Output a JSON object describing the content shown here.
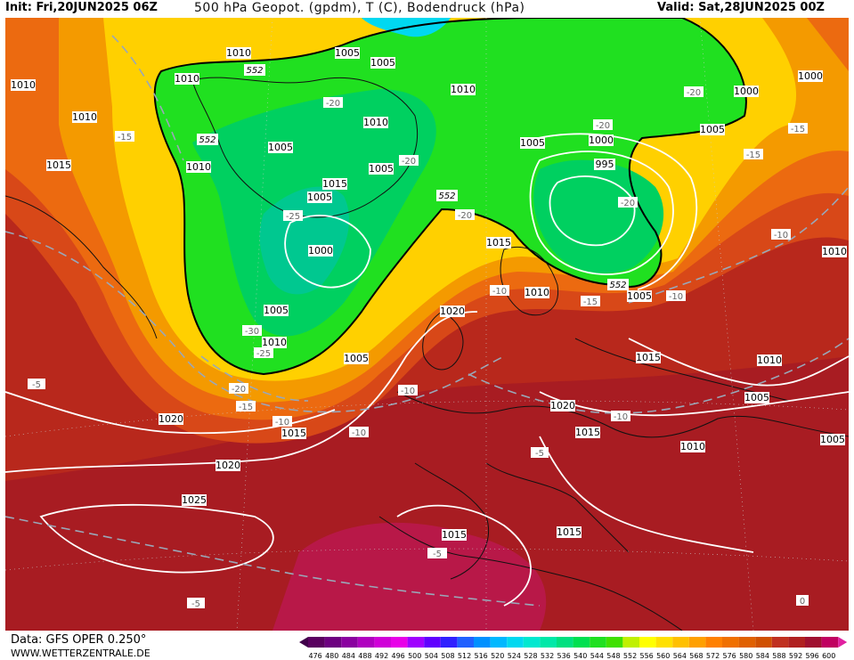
{
  "header": {
    "init": "Init: Fri,20JUN2025 06Z",
    "title": "500 hPa Geopot. (gpdm), T (C), Bodendruck (hPa)",
    "valid": "Valid: Sat,28JUN2025 00Z"
  },
  "footer": {
    "data_source": "Data: GFS OPER 0.250°",
    "website": "WWW.WETTERZENTRALE.DE"
  },
  "legend": {
    "values": [
      "476",
      "480",
      "484",
      "488",
      "492",
      "496",
      "500",
      "504",
      "508",
      "512",
      "516",
      "520",
      "524",
      "528",
      "532",
      "536",
      "540",
      "544",
      "548",
      "552",
      "556",
      "560",
      "564",
      "568",
      "572",
      "576",
      "580",
      "584",
      "588",
      "592",
      "596",
      "600"
    ],
    "colors": [
      "#5a0060",
      "#6d0080",
      "#8a00a0",
      "#b000c0",
      "#d000d8",
      "#e800e8",
      "#a000ff",
      "#6000ff",
      "#3020ff",
      "#2060ff",
      "#0090ff",
      "#00b8ff",
      "#00d8f0",
      "#00e8d0",
      "#00e8a8",
      "#00e080",
      "#00e050",
      "#20e020",
      "#40e000",
      "#c0f000",
      "#ffff00",
      "#ffe000",
      "#ffc000",
      "#ffa000",
      "#ff8000",
      "#f07000",
      "#e06000",
      "#d05000",
      "#c03020",
      "#b02020",
      "#a01030",
      "#c00060"
    ]
  },
  "isobar_labels": [
    "1010",
    "1005",
    "1005",
    "1010",
    "1000",
    "552",
    "1010",
    "1010",
    "1010",
    "1000",
    "1015",
    "1005",
    "552",
    "1010",
    "1005",
    "1005",
    "1015",
    "1005",
    "1000",
    "552",
    "995",
    "1005",
    "1015",
    "1010",
    "1005",
    "1000",
    "552",
    "1005",
    "1020",
    "1005",
    "1010",
    "1015",
    "1015",
    "1020",
    "1010",
    "1020",
    "1015",
    "1020",
    "1025",
    "1010",
    "1005",
    "1015",
    "1010",
    "1005",
    "1010",
    "1015"
  ],
  "temp_labels": [
    "-20",
    "-15",
    "-20",
    "-25",
    "-20",
    "-20",
    "-20",
    "-15",
    "-20",
    "-10",
    "-10",
    "-15",
    "-10",
    "-30",
    "-25",
    "-20",
    "-15",
    "-10",
    "-10",
    "-5",
    "-10",
    "-5",
    "-10",
    "-5",
    "-5",
    "-15",
    "0"
  ]
}
